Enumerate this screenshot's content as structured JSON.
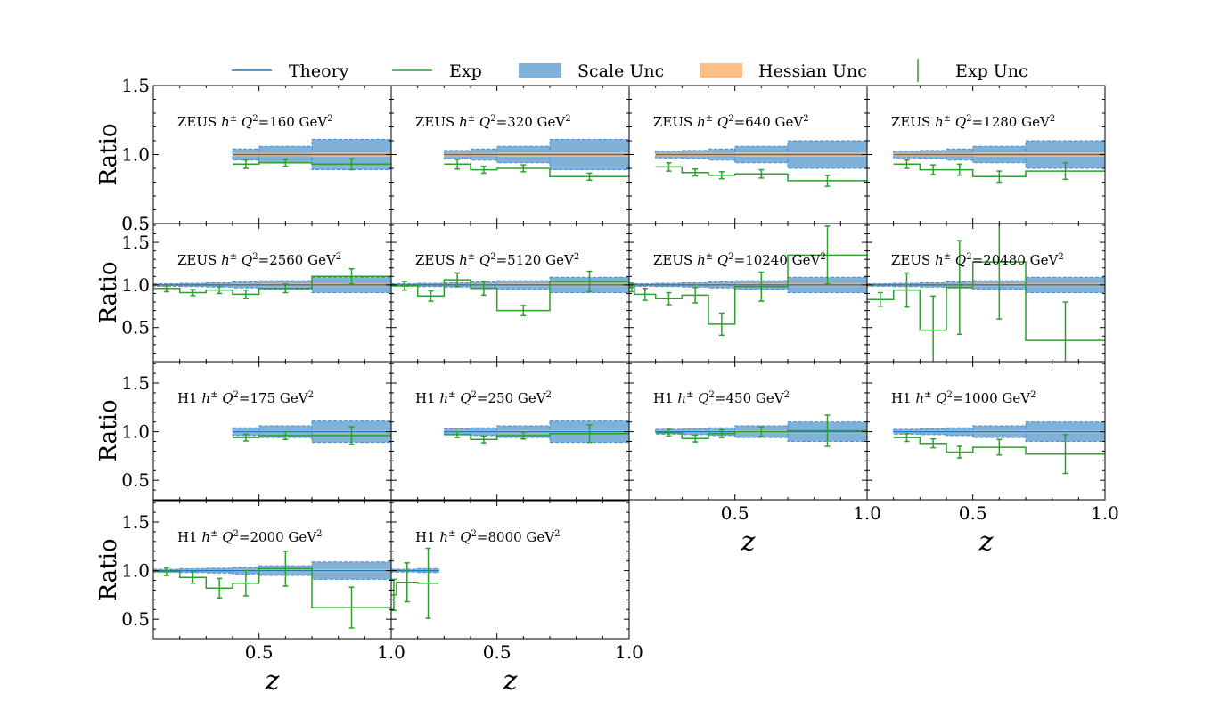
{
  "legend": {
    "items": [
      {
        "label": "Theory",
        "kind": "line",
        "color": "#1f77b4"
      },
      {
        "label": "Exp",
        "kind": "line",
        "color": "#2ca02c"
      },
      {
        "label": "Scale Unc",
        "kind": "patch",
        "color": "#7fb1d9"
      },
      {
        "label": "Hessian Unc",
        "kind": "patch",
        "color": "#ffbf86"
      },
      {
        "label": "Exp Unc",
        "kind": "errbar",
        "color": "#2ca02c"
      }
    ]
  },
  "colors": {
    "theory": "#1f77b4",
    "exp": "#2ca02c",
    "scale": "#7fb1d9",
    "scale_edge": "#4a90d0",
    "hessian": "#ffbf86"
  },
  "axis_text": {
    "ylabel": "Ratio",
    "xlabel": "z"
  },
  "chart_data": [
    {
      "type": "area",
      "title": "ZEUS h± Q²=160 GeV²",
      "exp": {
        "x": "z",
        "label": "Ratio"
      },
      "row": 0,
      "col": 0,
      "ylim": [
        0.5,
        1.5
      ],
      "yticks": [
        "0.5",
        "1.0",
        "1.5"
      ],
      "bins": [
        [
          0.4,
          0.5
        ],
        [
          0.5,
          0.7
        ],
        [
          0.7,
          1.0
        ]
      ],
      "exp_values": [
        0.93,
        0.94,
        0.93
      ],
      "exp_err": [
        0.03,
        0.025,
        0.04
      ],
      "scale_unc": [
        0.04,
        0.06,
        0.11
      ],
      "hessian_unc": [
        0.012,
        0.012,
        0.015
      ],
      "xlim": [
        0.1,
        1.0
      ]
    },
    {
      "type": "area",
      "title": "ZEUS h± Q²=320 GeV²",
      "row": 0,
      "col": 1,
      "ylim": [
        0.5,
        1.5
      ],
      "bins": [
        [
          0.3,
          0.4
        ],
        [
          0.4,
          0.5
        ],
        [
          0.5,
          0.7
        ],
        [
          0.7,
          1.0
        ]
      ],
      "exp_values": [
        0.93,
        0.89,
        0.9,
        0.84
      ],
      "exp_err": [
        0.035,
        0.025,
        0.025,
        0.025
      ],
      "scale_unc": [
        0.03,
        0.04,
        0.06,
        0.11
      ],
      "hessian_unc": [
        0.012,
        0.012,
        0.015,
        0.015
      ],
      "xlim": [
        0.1,
        1.0
      ]
    },
    {
      "type": "area",
      "title": "ZEUS h± Q²=640 GeV²",
      "row": 0,
      "col": 2,
      "ylim": [
        0.5,
        1.5
      ],
      "bins": [
        [
          0.2,
          0.3
        ],
        [
          0.3,
          0.4
        ],
        [
          0.4,
          0.5
        ],
        [
          0.5,
          0.7
        ],
        [
          0.7,
          1.0
        ]
      ],
      "exp_values": [
        0.91,
        0.87,
        0.85,
        0.86,
        0.81
      ],
      "exp_err": [
        0.03,
        0.025,
        0.025,
        0.03,
        0.04
      ],
      "scale_unc": [
        0.025,
        0.03,
        0.04,
        0.06,
        0.1
      ],
      "hessian_unc": [
        0.012,
        0.012,
        0.012,
        0.015,
        0.015
      ],
      "xlim": [
        0.1,
        1.0
      ]
    },
    {
      "type": "area",
      "title": "ZEUS h± Q²=1280 GeV²",
      "row": 0,
      "col": 3,
      "ylim": [
        0.5,
        1.5
      ],
      "bins": [
        [
          0.2,
          0.3
        ],
        [
          0.3,
          0.4
        ],
        [
          0.4,
          0.5
        ],
        [
          0.5,
          0.7
        ],
        [
          0.7,
          1.0
        ]
      ],
      "exp_values": [
        0.93,
        0.89,
        0.89,
        0.84,
        0.88
      ],
      "exp_err": [
        0.03,
        0.035,
        0.04,
        0.04,
        0.06
      ],
      "scale_unc": [
        0.025,
        0.03,
        0.04,
        0.06,
        0.1
      ],
      "hessian_unc": [
        0.012,
        0.012,
        0.012,
        0.015,
        0.015
      ],
      "xlim": [
        0.1,
        1.0
      ]
    },
    {
      "type": "area",
      "title": "ZEUS h± Q²=2560 GeV²",
      "row": 1,
      "col": 0,
      "ylim": [
        0.1,
        1.72
      ],
      "yticks": [
        "0.5",
        "1.0",
        "1.5"
      ],
      "bins": [
        [
          0.1,
          0.2
        ],
        [
          0.2,
          0.3
        ],
        [
          0.3,
          0.4
        ],
        [
          0.4,
          0.5
        ],
        [
          0.5,
          0.7
        ],
        [
          0.7,
          1.0
        ]
      ],
      "exp_values": [
        0.96,
        0.91,
        0.94,
        0.89,
        0.96,
        1.1
      ],
      "exp_err": [
        0.04,
        0.035,
        0.04,
        0.05,
        0.05,
        0.09
      ],
      "scale_unc": [
        0.015,
        0.02,
        0.025,
        0.035,
        0.05,
        0.09
      ],
      "hessian_unc": [
        0.01,
        0.01,
        0.01,
        0.012,
        0.015,
        0.015
      ],
      "xlim": [
        0.1,
        1.0
      ]
    },
    {
      "type": "area",
      "title": "ZEUS h± Q²=5120 GeV²",
      "row": 1,
      "col": 1,
      "ylim": [
        0.1,
        1.72
      ],
      "bins": [
        [
          0.1,
          0.2
        ],
        [
          0.2,
          0.3
        ],
        [
          0.3,
          0.4
        ],
        [
          0.4,
          0.5
        ],
        [
          0.5,
          0.7
        ],
        [
          0.7,
          1.0
        ]
      ],
      "exp_values": [
        0.99,
        0.87,
        1.06,
        0.96,
        0.7,
        1.04
      ],
      "exp_err": [
        0.05,
        0.06,
        0.08,
        0.08,
        0.06,
        0.12
      ],
      "scale_unc": [
        0.015,
        0.02,
        0.025,
        0.035,
        0.05,
        0.09
      ],
      "hessian_unc": [
        0.01,
        0.01,
        0.01,
        0.012,
        0.015,
        0.015
      ],
      "xlim": [
        0.1,
        1.0
      ]
    },
    {
      "type": "area",
      "title": "ZEUS h± Q²=10240 GeV²",
      "row": 1,
      "col": 2,
      "ylim": [
        0.1,
        1.72
      ],
      "bins": [
        [
          0.1,
          0.12
        ],
        [
          0.12,
          0.2
        ],
        [
          0.2,
          0.3
        ],
        [
          0.3,
          0.4
        ],
        [
          0.4,
          0.5
        ],
        [
          0.5,
          0.7
        ],
        [
          0.7,
          1.0
        ]
      ],
      "exp_values": [
        0.97,
        0.89,
        0.84,
        0.88,
        0.54,
        0.98,
        1.35
      ],
      "exp_err": [
        0.05,
        0.07,
        0.07,
        0.09,
        0.13,
        0.17,
        0.34
      ],
      "scale_unc": [
        0.015,
        0.015,
        0.02,
        0.025,
        0.035,
        0.05,
        0.09
      ],
      "hessian_unc": [
        0.01,
        0.01,
        0.01,
        0.01,
        0.012,
        0.015,
        0.015
      ],
      "xlim": [
        0.1,
        1.0
      ]
    },
    {
      "type": "area",
      "title": "ZEUS h± Q²=20480 GeV²",
      "row": 1,
      "col": 3,
      "ylim": [
        0.1,
        1.72
      ],
      "bins": [
        [
          0.1,
          0.2
        ],
        [
          0.2,
          0.3
        ],
        [
          0.3,
          0.4
        ],
        [
          0.4,
          0.5
        ],
        [
          0.5,
          0.7
        ],
        [
          0.7,
          1.0
        ]
      ],
      "exp_values": [
        0.83,
        0.94,
        0.47,
        0.97,
        1.27,
        0.35
      ],
      "exp_err": [
        0.08,
        0.2,
        0.4,
        0.55,
        0.67,
        0.45
      ],
      "scale_unc": [
        0.015,
        0.02,
        0.025,
        0.035,
        0.05,
        0.09
      ],
      "hessian_unc": [
        0.01,
        0.01,
        0.01,
        0.012,
        0.015,
        0.015
      ],
      "xlim": [
        0.1,
        1.0
      ]
    },
    {
      "type": "area",
      "title": "H1 h± Q²=175 GeV²",
      "row": 2,
      "col": 0,
      "ylim": [
        0.3,
        1.72
      ],
      "yticks": [
        "0.5",
        "1.0",
        "1.5"
      ],
      "bins": [
        [
          0.4,
          0.5
        ],
        [
          0.5,
          0.7
        ],
        [
          0.7,
          1.0
        ]
      ],
      "exp_values": [
        0.94,
        0.96,
        0.96
      ],
      "exp_err": [
        0.035,
        0.04,
        0.09
      ],
      "scale_unc": [
        0.04,
        0.06,
        0.11
      ],
      "hessian_unc": [
        0.012,
        0.012,
        0.015
      ],
      "xlim": [
        0.1,
        1.0
      ]
    },
    {
      "type": "area",
      "title": "H1 h± Q²=250 GeV²",
      "row": 2,
      "col": 1,
      "ylim": [
        0.3,
        1.72
      ],
      "bins": [
        [
          0.3,
          0.4
        ],
        [
          0.4,
          0.5
        ],
        [
          0.5,
          0.7
        ],
        [
          0.7,
          1.0
        ]
      ],
      "exp_values": [
        0.97,
        0.92,
        0.96,
        0.98
      ],
      "exp_err": [
        0.03,
        0.035,
        0.035,
        0.09
      ],
      "scale_unc": [
        0.03,
        0.04,
        0.06,
        0.11
      ],
      "hessian_unc": [
        0.012,
        0.012,
        0.015,
        0.015
      ],
      "xlim": [
        0.1,
        1.0
      ]
    },
    {
      "type": "area",
      "title": "H1 h± Q²=450 GeV²",
      "row": 2,
      "col": 2,
      "ylim": [
        0.3,
        1.72
      ],
      "bins": [
        [
          0.2,
          0.3
        ],
        [
          0.3,
          0.4
        ],
        [
          0.4,
          0.5
        ],
        [
          0.5,
          0.7
        ],
        [
          0.7,
          1.0
        ]
      ],
      "exp_values": [
        0.99,
        0.93,
        0.98,
        1.0,
        1.01
      ],
      "exp_err": [
        0.035,
        0.035,
        0.04,
        0.05,
        0.16
      ],
      "scale_unc": [
        0.025,
        0.03,
        0.04,
        0.06,
        0.1
      ],
      "hessian_unc": [
        0.012,
        0.012,
        0.012,
        0.015,
        0.015
      ],
      "xlim": [
        0.1,
        1.0
      ],
      "xticks": [
        "0.5",
        "1.0"
      ]
    },
    {
      "type": "area",
      "title": "H1 h± Q²=1000 GeV²",
      "row": 2,
      "col": 3,
      "ylim": [
        0.3,
        1.72
      ],
      "bins": [
        [
          0.2,
          0.3
        ],
        [
          0.3,
          0.4
        ],
        [
          0.4,
          0.5
        ],
        [
          0.5,
          0.7
        ],
        [
          0.7,
          1.0
        ]
      ],
      "exp_values": [
        0.94,
        0.88,
        0.79,
        0.84,
        0.77
      ],
      "exp_err": [
        0.04,
        0.045,
        0.06,
        0.08,
        0.2
      ],
      "scale_unc": [
        0.025,
        0.03,
        0.04,
        0.06,
        0.1
      ],
      "hessian_unc": [
        0.012,
        0.012,
        0.012,
        0.015,
        0.015
      ],
      "xlim": [
        0.1,
        1.0
      ],
      "xticks": [
        "0.5",
        "1.0"
      ]
    },
    {
      "type": "area",
      "title": "H1 h± Q²=2000 GeV²",
      "row": 3,
      "col": 0,
      "ylim": [
        0.3,
        1.72
      ],
      "yticks": [
        "0.5",
        "1.0",
        "1.5"
      ],
      "bins": [
        [
          0.1,
          0.2
        ],
        [
          0.2,
          0.3
        ],
        [
          0.3,
          0.4
        ],
        [
          0.4,
          0.5
        ],
        [
          0.5,
          0.7
        ],
        [
          0.7,
          1.0
        ]
      ],
      "exp_values": [
        0.99,
        0.93,
        0.82,
        0.87,
        1.02,
        0.62
      ],
      "exp_err": [
        0.04,
        0.06,
        0.1,
        0.13,
        0.18,
        0.21
      ],
      "scale_unc": [
        0.015,
        0.02,
        0.025,
        0.035,
        0.05,
        0.09
      ],
      "hessian_unc": [
        0.01,
        0.01,
        0.01,
        0.012,
        0.015,
        0.015
      ],
      "xlim": [
        0.1,
        1.0
      ],
      "xticks": [
        "0.5",
        "1.0"
      ]
    },
    {
      "type": "area",
      "title": "H1 h± Q²=8000 GeV²",
      "row": 3,
      "col": 1,
      "ylim": [
        0.3,
        1.72
      ],
      "bins": [
        [
          0.1,
          0.12
        ],
        [
          0.12,
          0.2
        ],
        [
          0.2,
          0.28
        ]
      ],
      "exp_values": [
        0.75,
        0.88,
        0.87
      ],
      "exp_err": [
        0.16,
        0.2,
        0.36
      ],
      "scale_unc": [
        0.015,
        0.015,
        0.02
      ],
      "hessian_unc": [
        0.01,
        0.01,
        0.01
      ],
      "xlim": [
        0.1,
        1.0
      ],
      "xticks": [
        "0.5",
        "1.0"
      ]
    }
  ],
  "panel_titles": [
    {
      "pre": "ZEUS ",
      "sup_h": "±",
      "q": "=160 GeV"
    },
    {
      "pre": "ZEUS ",
      "sup_h": "±",
      "q": "=320 GeV"
    },
    {
      "pre": "ZEUS ",
      "sup_h": "±",
      "q": "=640 GeV"
    },
    {
      "pre": "ZEUS ",
      "sup_h": "±",
      "q": "=1280 GeV"
    },
    {
      "pre": "ZEUS ",
      "sup_h": "±",
      "q": "=2560 GeV"
    },
    {
      "pre": "ZEUS ",
      "sup_h": "±",
      "q": "=5120 GeV"
    },
    {
      "pre": "ZEUS ",
      "sup_h": "±",
      "q": "=10240 GeV"
    },
    {
      "pre": "ZEUS ",
      "sup_h": "±",
      "q": "=20480 GeV"
    },
    {
      "pre": "H1 ",
      "sup_h": "±",
      "q": "=175 GeV"
    },
    {
      "pre": "H1 ",
      "sup_h": "±",
      "q": "=250 GeV"
    },
    {
      "pre": "H1 ",
      "sup_h": "±",
      "q": "=450 GeV"
    },
    {
      "pre": "H1 ",
      "sup_h": "±",
      "q": "=1000 GeV"
    },
    {
      "pre": "H1 ",
      "sup_h": "±",
      "q": "=2000 GeV"
    },
    {
      "pre": "H1 ",
      "sup_h": "±",
      "q": "=8000 GeV"
    }
  ]
}
